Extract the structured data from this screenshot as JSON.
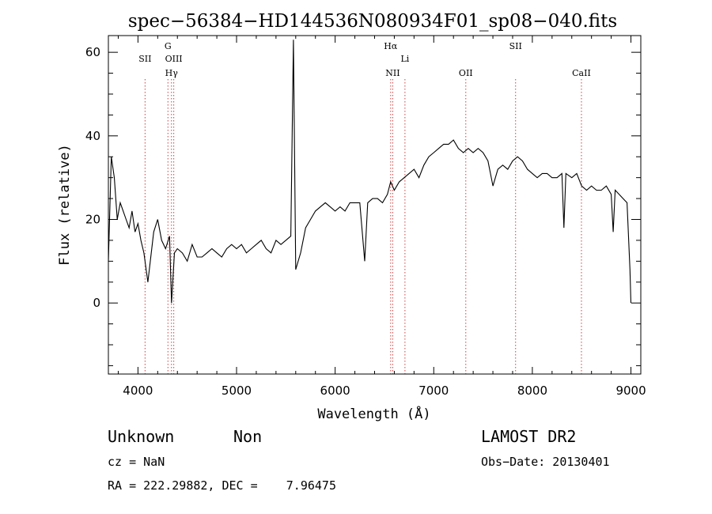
{
  "chart_data": {
    "type": "line",
    "title": "spec−56384−HD144536N080934F01_sp08−040.fits",
    "xlabel": "Wavelength (Å)",
    "ylabel": "Flux (relative)",
    "xlim": [
      3700,
      9100
    ],
    "ylim": [
      -17,
      64
    ],
    "xticks": [
      4000,
      5000,
      6000,
      7000,
      8000,
      9000
    ],
    "yticks": [
      0,
      20,
      40,
      60
    ],
    "grid": false,
    "series": [
      {
        "color": "#000000",
        "points": [
          [
            3700,
            10
          ],
          [
            3730,
            35
          ],
          [
            3760,
            30
          ],
          [
            3790,
            20
          ],
          [
            3820,
            24
          ],
          [
            3850,
            22
          ],
          [
            3880,
            20
          ],
          [
            3910,
            18
          ],
          [
            3940,
            22
          ],
          [
            3970,
            17
          ],
          [
            4000,
            19
          ],
          [
            4030,
            15
          ],
          [
            4060,
            12
          ],
          [
            4100,
            5
          ],
          [
            4130,
            11
          ],
          [
            4160,
            17
          ],
          [
            4200,
            20
          ],
          [
            4240,
            15
          ],
          [
            4280,
            13
          ],
          [
            4320,
            16
          ],
          [
            4340,
            0
          ],
          [
            4370,
            12
          ],
          [
            4400,
            13
          ],
          [
            4450,
            12
          ],
          [
            4500,
            10
          ],
          [
            4550,
            14
          ],
          [
            4600,
            11
          ],
          [
            4650,
            11
          ],
          [
            4700,
            12
          ],
          [
            4750,
            13
          ],
          [
            4800,
            12
          ],
          [
            4850,
            11
          ],
          [
            4900,
            13
          ],
          [
            4950,
            14
          ],
          [
            5000,
            13
          ],
          [
            5050,
            14
          ],
          [
            5100,
            12
          ],
          [
            5150,
            13
          ],
          [
            5200,
            14
          ],
          [
            5250,
            15
          ],
          [
            5300,
            13
          ],
          [
            5350,
            12
          ],
          [
            5400,
            15
          ],
          [
            5450,
            14
          ],
          [
            5500,
            15
          ],
          [
            5550,
            16
          ],
          [
            5577,
            63
          ],
          [
            5600,
            8
          ],
          [
            5650,
            12
          ],
          [
            5700,
            18
          ],
          [
            5750,
            20
          ],
          [
            5800,
            22
          ],
          [
            5850,
            23
          ],
          [
            5900,
            24
          ],
          [
            5950,
            23
          ],
          [
            6000,
            22
          ],
          [
            6050,
            23
          ],
          [
            6100,
            22
          ],
          [
            6150,
            24
          ],
          [
            6200,
            24
          ],
          [
            6250,
            24
          ],
          [
            6300,
            10
          ],
          [
            6330,
            24
          ],
          [
            6380,
            25
          ],
          [
            6430,
            25
          ],
          [
            6480,
            24
          ],
          [
            6530,
            26
          ],
          [
            6563,
            29
          ],
          [
            6600,
            27
          ],
          [
            6650,
            29
          ],
          [
            6700,
            30
          ],
          [
            6750,
            31
          ],
          [
            6800,
            32
          ],
          [
            6850,
            30
          ],
          [
            6900,
            33
          ],
          [
            6950,
            35
          ],
          [
            7000,
            36
          ],
          [
            7050,
            37
          ],
          [
            7100,
            38
          ],
          [
            7150,
            38
          ],
          [
            7200,
            39
          ],
          [
            7250,
            37
          ],
          [
            7300,
            36
          ],
          [
            7350,
            37
          ],
          [
            7400,
            36
          ],
          [
            7450,
            37
          ],
          [
            7500,
            36
          ],
          [
            7550,
            34
          ],
          [
            7600,
            28
          ],
          [
            7650,
            32
          ],
          [
            7700,
            33
          ],
          [
            7750,
            32
          ],
          [
            7800,
            34
          ],
          [
            7850,
            35
          ],
          [
            7900,
            34
          ],
          [
            7950,
            32
          ],
          [
            8000,
            31
          ],
          [
            8050,
            30
          ],
          [
            8100,
            31
          ],
          [
            8150,
            31
          ],
          [
            8200,
            30
          ],
          [
            8250,
            30
          ],
          [
            8300,
            31
          ],
          [
            8320,
            18
          ],
          [
            8340,
            31
          ],
          [
            8400,
            30
          ],
          [
            8450,
            31
          ],
          [
            8500,
            28
          ],
          [
            8550,
            27
          ],
          [
            8600,
            28
          ],
          [
            8650,
            27
          ],
          [
            8700,
            27
          ],
          [
            8750,
            28
          ],
          [
            8800,
            26
          ],
          [
            8820,
            17
          ],
          [
            8840,
            27
          ],
          [
            8880,
            26
          ],
          [
            8920,
            25
          ],
          [
            8960,
            24
          ],
          [
            8990,
            8
          ],
          [
            9000,
            0
          ]
        ]
      }
    ],
    "line_markers": [
      {
        "label": "SII",
        "wavelength": 4072,
        "row": 1
      },
      {
        "label": "G",
        "wavelength": 4304,
        "row": 0
      },
      {
        "label": "OIII",
        "wavelength": 4363,
        "row": 1
      },
      {
        "label": "Hγ",
        "wavelength": 4340,
        "row": 2
      },
      {
        "label": "Hα",
        "wavelength": 6563,
        "row": 0
      },
      {
        "label": "Li",
        "wavelength": 6708,
        "row": 1
      },
      {
        "label": "NII",
        "wavelength": 6584,
        "row": 2
      },
      {
        "label": "OII",
        "wavelength": 7325,
        "row": 2
      },
      {
        "label": "SII",
        "wavelength": 7830,
        "row": 0
      },
      {
        "label": "CaII",
        "wavelength": 8498,
        "row": 2
      }
    ],
    "marker_color": "#d04040"
  },
  "info": {
    "class_label": "Unknown",
    "subclass_label": "Non",
    "survey": "LAMOST DR2",
    "cz": "cz = NaN",
    "obs_date": "Obs−Date: 20130401",
    "coords": "RA = 222.29882, DEC =    7.96475"
  }
}
